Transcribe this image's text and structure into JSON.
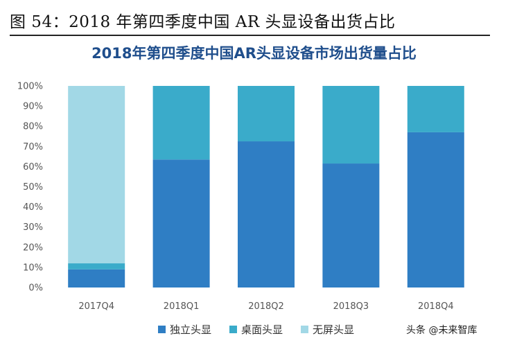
{
  "caption": "图 54：2018 年第四季度中国 AR 头显设备出货占比",
  "watermark": "头条 @未来智库",
  "colors": {
    "standalone": "#2f7ec4",
    "desktop": "#3aabca",
    "wireless": "#a2d8e6",
    "title": "#1f4e8c"
  },
  "chart_data": {
    "type": "bar",
    "stacked": true,
    "title": "2018年第四季度中国AR头显设备市场出货量占比",
    "categories": [
      "2017Q4",
      "2018Q1",
      "2018Q2",
      "2018Q3",
      "2018Q4"
    ],
    "series": [
      {
        "name": "独立头显",
        "values": [
          9,
          63.5,
          72.5,
          61.5,
          77
        ]
      },
      {
        "name": "桌面头显",
        "values": [
          3,
          36.5,
          27.5,
          38.5,
          23
        ]
      },
      {
        "name": "无屏头显",
        "values": [
          88,
          0,
          0,
          0,
          0
        ]
      }
    ],
    "ylim": [
      0,
      100
    ],
    "yticks": [
      "0%",
      "10%",
      "20%",
      "30%",
      "40%",
      "50%",
      "60%",
      "70%",
      "80%",
      "90%",
      "100%"
    ],
    "grid": false,
    "legend_position": "bottom"
  }
}
